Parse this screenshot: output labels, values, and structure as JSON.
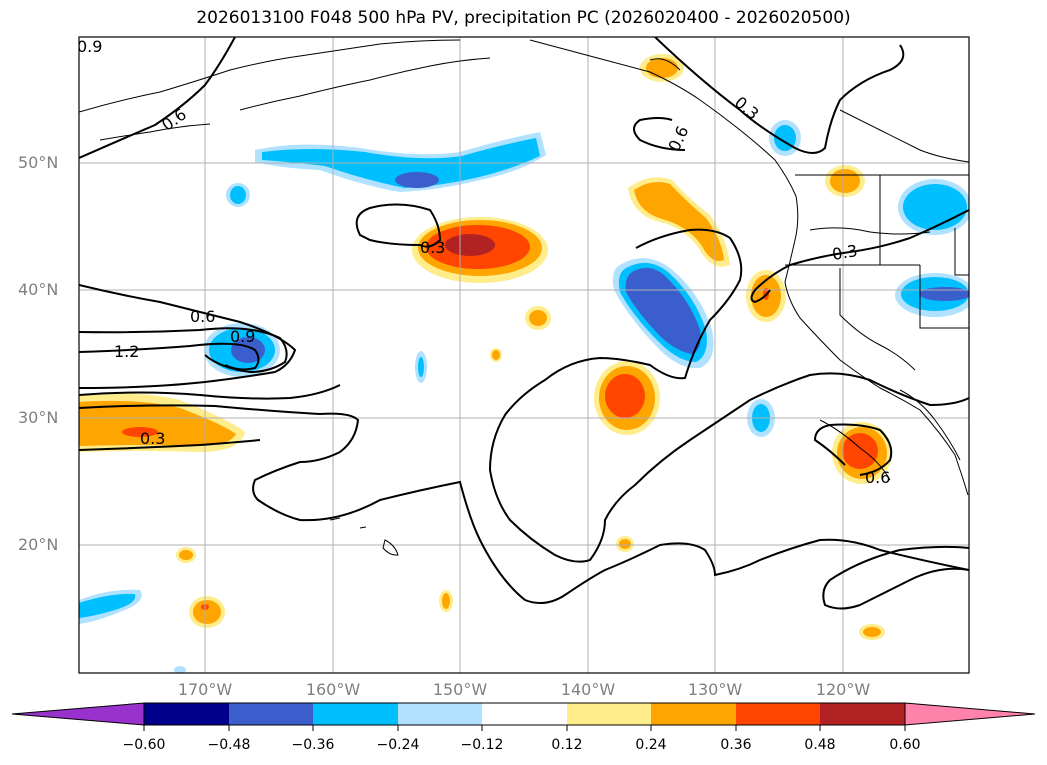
{
  "title": "2026013100 F048 500 hPa PV, precipitation PC (2026020400 - 2026020500)",
  "lat_labels": [
    "50°N",
    "40°N",
    "30°N",
    "20°N"
  ],
  "lon_labels": [
    "170°W",
    "160°W",
    "150°W",
    "140°W",
    "130°W",
    "120°W"
  ],
  "colorbar": {
    "ticks": [
      "−0.60",
      "−0.48",
      "−0.36",
      "−0.24",
      "−0.12",
      "0.12",
      "0.24",
      "0.36",
      "0.48",
      "0.60"
    ],
    "colors": [
      "#9932cc",
      "#00008b",
      "#3a5fcd",
      "#00bfff",
      "#b0e2ff",
      "#ffffff",
      "#ffec8b",
      "#ffa500",
      "#ff4500",
      "#b22222",
      "#ff82ab"
    ]
  },
  "contour_labels": [
    "0.9",
    "0.6",
    "0.6",
    "0.3",
    "0.3",
    "0.3",
    "0.6",
    "0.9",
    "1.2",
    "0.3",
    "0.6"
  ],
  "palette": {
    "lightblue": "#b0e2ff",
    "skyblue": "#00bfff",
    "royalblue": "#3a5fcd",
    "lightyellow": "#ffec8b",
    "orange": "#ffa500",
    "redorange": "#ff4500",
    "darkred": "#b22222"
  }
}
